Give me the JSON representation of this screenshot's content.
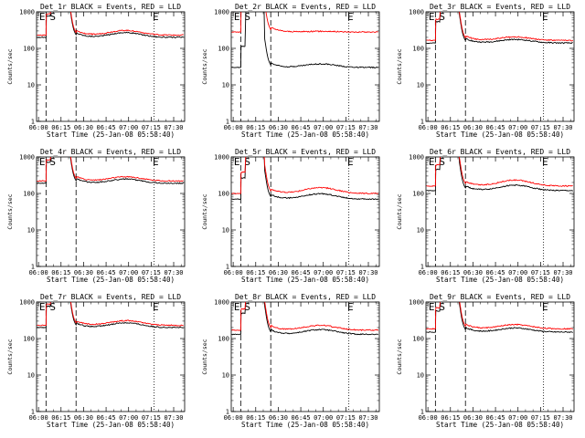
{
  "chart_data": [
    {
      "type": "line",
      "title": "Det_1r BLACK = Events, RED = LLD",
      "xlabel": "Start Time (25-Jan-08 05:58:40)",
      "ylabel": "Counts/sec",
      "ylim": [
        1,
        1000
      ],
      "yscale": "log",
      "x_ticks": [
        "06:00",
        "06:15",
        "06:30",
        "06:45",
        "07:00",
        "07:15",
        "07:30"
      ],
      "y_ticks": [
        "1",
        "10",
        "100",
        "1000"
      ],
      "markers": [
        "E",
        "S",
        "E"
      ],
      "series": [
        {
          "name": "Events",
          "color": "#000000",
          "base": 200,
          "bump": 1.35
        },
        {
          "name": "LLD",
          "color": "#ff0000",
          "base": 230,
          "bump": 1.35
        }
      ]
    },
    {
      "type": "line",
      "title": "Det_2r BLACK = Events, RED = LLD",
      "xlabel": "Start Time (25-Jan-08 05:58:40)",
      "ylabel": "Counts/sec",
      "ylim": [
        1,
        1000
      ],
      "yscale": "log",
      "x_ticks": [
        "06:00",
        "06:15",
        "06:30",
        "06:45",
        "07:00",
        "07:15",
        "07:30"
      ],
      "y_ticks": [
        "1",
        "10",
        "100",
        "1000"
      ],
      "markers": [
        "E",
        "S",
        "E"
      ],
      "series": [
        {
          "name": "Events",
          "color": "#000000",
          "base": 30,
          "bump": 1.25
        },
        {
          "name": "LLD",
          "color": "#ff0000",
          "base": 280,
          "bump": 1.05
        }
      ]
    },
    {
      "type": "line",
      "title": "Det_3r BLACK = Events, RED = LLD",
      "xlabel": "Start Time (25-Jan-08 05:58:40)",
      "ylabel": "Counts/sec",
      "ylim": [
        1,
        1000
      ],
      "yscale": "log",
      "x_ticks": [
        "06:00",
        "06:15",
        "06:30",
        "06:45",
        "07:00",
        "07:15",
        "07:30"
      ],
      "y_ticks": [
        "1",
        "10",
        "100",
        "1000"
      ],
      "markers": [
        "E",
        "S",
        "E"
      ],
      "series": [
        {
          "name": "Events",
          "color": "#000000",
          "base": 140,
          "bump": 1.25
        },
        {
          "name": "LLD",
          "color": "#ff0000",
          "base": 165,
          "bump": 1.25
        }
      ]
    },
    {
      "type": "line",
      "title": "Det_4r BLACK = Events, RED = LLD",
      "xlabel": "Start Time (25-Jan-08 05:58:40)",
      "ylabel": "Counts/sec",
      "ylim": [
        1,
        1000
      ],
      "yscale": "log",
      "x_ticks": [
        "06:00",
        "06:15",
        "06:30",
        "06:45",
        "07:00",
        "07:15",
        "07:30"
      ],
      "y_ticks": [
        "1",
        "10",
        "100",
        "1000"
      ],
      "markers": [
        "E",
        "S",
        "E"
      ],
      "series": [
        {
          "name": "Events",
          "color": "#000000",
          "base": 190,
          "bump": 1.3
        },
        {
          "name": "LLD",
          "color": "#ff0000",
          "base": 220,
          "bump": 1.3
        }
      ]
    },
    {
      "type": "line",
      "title": "Det_5r BLACK = Events, RED = LLD",
      "xlabel": "Start Time (25-Jan-08 05:58:40)",
      "ylabel": "Counts/sec",
      "ylim": [
        1,
        1000
      ],
      "yscale": "log",
      "x_ticks": [
        "06:00",
        "06:15",
        "06:30",
        "06:45",
        "07:00",
        "07:15",
        "07:30"
      ],
      "y_ticks": [
        "1",
        "10",
        "100",
        "1000"
      ],
      "markers": [
        "E",
        "S",
        "E"
      ],
      "series": [
        {
          "name": "Events",
          "color": "#000000",
          "base": 70,
          "bump": 1.4
        },
        {
          "name": "LLD",
          "color": "#ff0000",
          "base": 100,
          "bump": 1.45
        }
      ]
    },
    {
      "type": "line",
      "title": "Det_6r BLACK = Events, RED = LLD",
      "xlabel": "Start Time (25-Jan-08 05:58:40)",
      "ylabel": "Counts/sec",
      "ylim": [
        1,
        1000
      ],
      "yscale": "log",
      "x_ticks": [
        "06:00",
        "06:15",
        "06:30",
        "06:45",
        "07:00",
        "07:15",
        "07:30"
      ],
      "y_ticks": [
        "1",
        "10",
        "100",
        "1000"
      ],
      "markers": [
        "E",
        "S",
        "E"
      ],
      "series": [
        {
          "name": "Events",
          "color": "#000000",
          "base": 120,
          "bump": 1.4
        },
        {
          "name": "LLD",
          "color": "#ff0000",
          "base": 160,
          "bump": 1.45
        }
      ]
    },
    {
      "type": "line",
      "title": "Det_7r BLACK = Events, RED = LLD",
      "xlabel": "Start Time (25-Jan-08 05:58:40)",
      "ylabel": "Counts/sec",
      "ylim": [
        1,
        1000
      ],
      "yscale": "log",
      "x_ticks": [
        "06:00",
        "06:15",
        "06:30",
        "06:45",
        "07:00",
        "07:15",
        "07:30"
      ],
      "y_ticks": [
        "1",
        "10",
        "100",
        "1000"
      ],
      "markers": [
        "E",
        "S",
        "E"
      ],
      "series": [
        {
          "name": "Events",
          "color": "#000000",
          "base": 200,
          "bump": 1.35
        },
        {
          "name": "LLD",
          "color": "#ff0000",
          "base": 230,
          "bump": 1.35
        }
      ]
    },
    {
      "type": "line",
      "title": "Det_8r BLACK = Events, RED = LLD",
      "xlabel": "Start Time (25-Jan-08 05:58:40)",
      "ylabel": "Counts/sec",
      "ylim": [
        1,
        1000
      ],
      "yscale": "log",
      "x_ticks": [
        "06:00",
        "06:15",
        "06:30",
        "06:45",
        "07:00",
        "07:15",
        "07:30"
      ],
      "y_ticks": [
        "1",
        "10",
        "100",
        "1000"
      ],
      "markers": [
        "E",
        "S",
        "E"
      ],
      "series": [
        {
          "name": "Events",
          "color": "#000000",
          "base": 130,
          "bump": 1.35
        },
        {
          "name": "LLD",
          "color": "#ff0000",
          "base": 170,
          "bump": 1.35
        }
      ]
    },
    {
      "type": "line",
      "title": "Det_9r BLACK = Events, RED = LLD",
      "xlabel": "Start Time (25-Jan-08 05:58:40)",
      "ylabel": "Counts/sec",
      "ylim": [
        1,
        1000
      ],
      "yscale": "log",
      "x_ticks": [
        "06:00",
        "06:15",
        "06:30",
        "06:45",
        "07:00",
        "07:15",
        "07:30"
      ],
      "y_ticks": [
        "1",
        "10",
        "100",
        "1000"
      ],
      "markers": [
        "E",
        "S",
        "E"
      ],
      "series": [
        {
          "name": "Events",
          "color": "#000000",
          "base": 150,
          "bump": 1.3
        },
        {
          "name": "LLD",
          "color": "#ff0000",
          "base": 185,
          "bump": 1.3
        }
      ]
    }
  ]
}
